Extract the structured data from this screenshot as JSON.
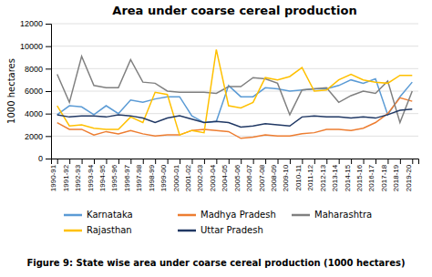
{
  "chart_data": {
    "type": "line",
    "title": "Area under coarse cereal production",
    "ylabel": "1000 hectares",
    "caption": "Figure 9: State wise area under coarse cereal production (1000 hectares)",
    "categories": [
      "1990-91",
      "1991-92",
      "1992-93",
      "1993-94",
      "1994-95",
      "1995-96",
      "1996-97",
      "1997-98",
      "1998-99",
      "1999-00",
      "2000-01",
      "2001-02",
      "2002-03",
      "2003-04",
      "2004-05",
      "2005-06",
      "2006-07",
      "2007-08",
      "2008-09",
      "2009-10",
      "2010-11",
      "2011-12",
      "2012-13",
      "2013-14",
      "2014-15",
      "2015-16",
      "2016-17",
      "2017-18",
      "2018-19",
      "2019-20"
    ],
    "series": [
      {
        "name": "Karnataka",
        "color": "#5b9bd5",
        "values": [
          3900,
          4700,
          4600,
          3900,
          4700,
          4000,
          5200,
          5000,
          5300,
          5500,
          5500,
          3800,
          3200,
          3300,
          6500,
          5500,
          5500,
          6300,
          6200,
          6000,
          6100,
          6200,
          6200,
          6500,
          7000,
          6700,
          7100,
          3900,
          5500,
          6800
        ]
      },
      {
        "name": "Madhya Pradesh",
        "color": "#ed7d31",
        "values": [
          3200,
          2600,
          2600,
          2100,
          2400,
          2200,
          2500,
          2200,
          2000,
          2100,
          2100,
          2500,
          2600,
          2500,
          2400,
          1800,
          1900,
          2100,
          2000,
          2000,
          2200,
          2300,
          2600,
          2600,
          2500,
          2700,
          3200,
          4000,
          5400,
          5100
        ]
      },
      {
        "name": "Maharashtra",
        "color": "#808080",
        "values": [
          7500,
          5000,
          9100,
          6500,
          6300,
          6300,
          8800,
          6800,
          6700,
          6000,
          5900,
          5900,
          5900,
          5800,
          6400,
          6400,
          7200,
          7100,
          6700,
          3900,
          6100,
          6200,
          6300,
          5000,
          5600,
          6000,
          5800,
          6900,
          3200,
          6000
        ]
      },
      {
        "name": "Rajasthan",
        "color": "#ffc000",
        "values": [
          4700,
          2900,
          3000,
          2700,
          2600,
          2600,
          3700,
          3200,
          5900,
          5700,
          2100,
          2500,
          2300,
          9700,
          4700,
          4500,
          5000,
          7200,
          7000,
          7300,
          8100,
          6000,
          6100,
          7000,
          7500,
          7000,
          6800,
          6700,
          7400,
          7400
        ]
      },
      {
        "name": "Uttar Pradesh",
        "color": "#203864",
        "values": [
          3900,
          3700,
          3800,
          3800,
          3700,
          3900,
          3800,
          3600,
          3200,
          3600,
          3800,
          3500,
          3200,
          3300,
          3200,
          2800,
          2900,
          3100,
          3000,
          2900,
          3700,
          3800,
          3700,
          3700,
          3600,
          3700,
          3600,
          3900,
          4300,
          4400
        ]
      }
    ],
    "ylim": [
      0,
      12000
    ],
    "yticks": [
      0,
      2000,
      4000,
      6000,
      8000,
      10000,
      12000
    ],
    "grid": true,
    "legend": "bottom"
  }
}
